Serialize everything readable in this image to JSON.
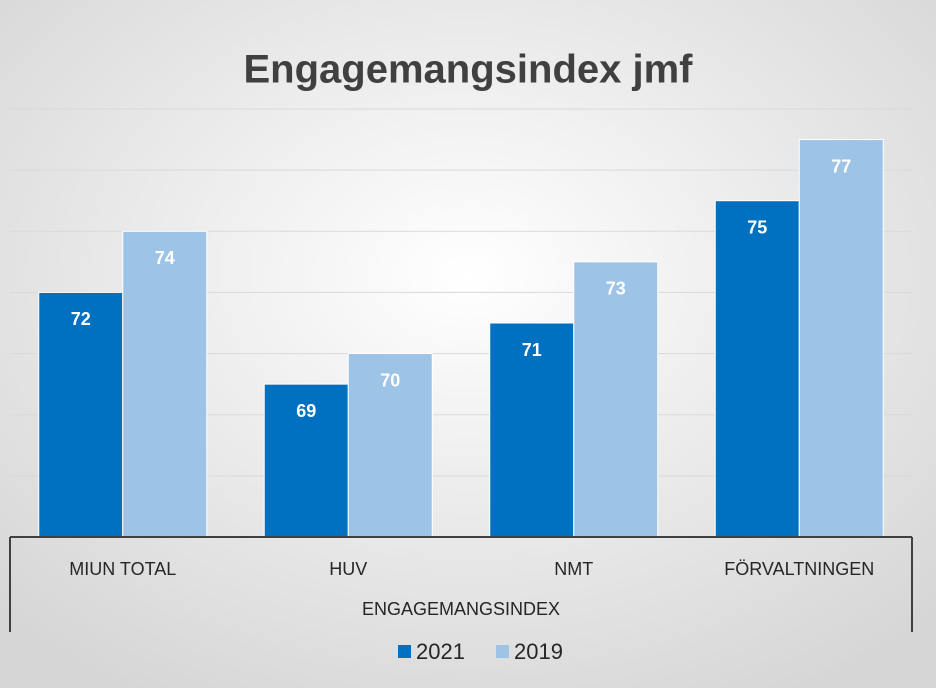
{
  "chart_data": {
    "type": "bar",
    "title": "Engagemangsindex jmf",
    "x_label": "ENGAGEMANGSINDEX",
    "categories": [
      "MIUN TOTAL",
      "HUV",
      "NMT",
      "FÖRVALTNINGEN"
    ],
    "series": [
      {
        "name": "2021",
        "color": "#0070c0",
        "values": [
          72,
          69,
          71,
          75
        ]
      },
      {
        "name": "2019",
        "color": "#9dc3e6",
        "values": [
          74,
          70,
          73,
          77
        ]
      }
    ],
    "ylim": [
      64,
      78
    ],
    "yticks": [
      64,
      66,
      68,
      70,
      72,
      74,
      76,
      78
    ],
    "grid": true,
    "legend": "bottom"
  }
}
